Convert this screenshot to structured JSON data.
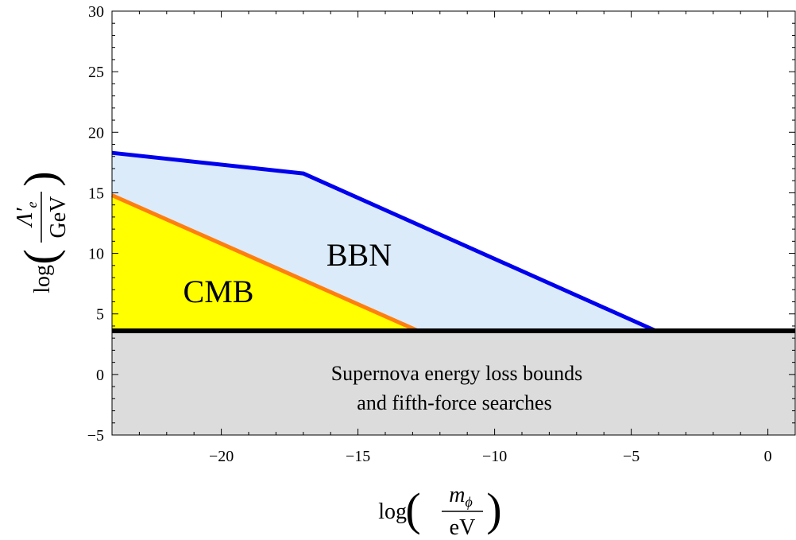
{
  "chart_data": {
    "type": "area",
    "xlim": [
      -24,
      1
    ],
    "ylim": [
      -5,
      30
    ],
    "x_ticks": [
      -20,
      -15,
      -10,
      -5,
      0
    ],
    "y_ticks": [
      -5,
      0,
      5,
      10,
      15,
      20,
      25,
      30
    ],
    "xlabel": {
      "prefix": "log",
      "numerator": "m",
      "numerator_sub": "ϕ",
      "denominator": "eV"
    },
    "ylabel": {
      "prefix": "log",
      "numerator": "Λ′",
      "numerator_sub": "e",
      "denominator": "GeV"
    },
    "series": [
      {
        "name": "BBN",
        "label": "BBN",
        "line_color": "#0000ee",
        "fill_color": "#dcebfa",
        "points": [
          [
            -24,
            18.3
          ],
          [
            -17,
            16.6
          ],
          [
            -4.1,
            3.6
          ]
        ]
      },
      {
        "name": "CMB",
        "label": "CMB",
        "line_color": "#ff7f0e",
        "fill_color": "#ffff00",
        "points": [
          [
            -24,
            14.8
          ],
          [
            -12.8,
            3.6
          ]
        ]
      },
      {
        "name": "Supernova",
        "label_lines": [
          "Supernova energy loss bounds",
          "and fifth-force searches"
        ],
        "line_color": "#000000",
        "fill_color": "#dcdcdc",
        "threshold": 3.6
      }
    ],
    "labels": {
      "bbn": "BBN",
      "cmb": "CMB",
      "sn_line1": "Supernova energy loss bounds",
      "sn_line2": "and fifth-force searches"
    }
  }
}
